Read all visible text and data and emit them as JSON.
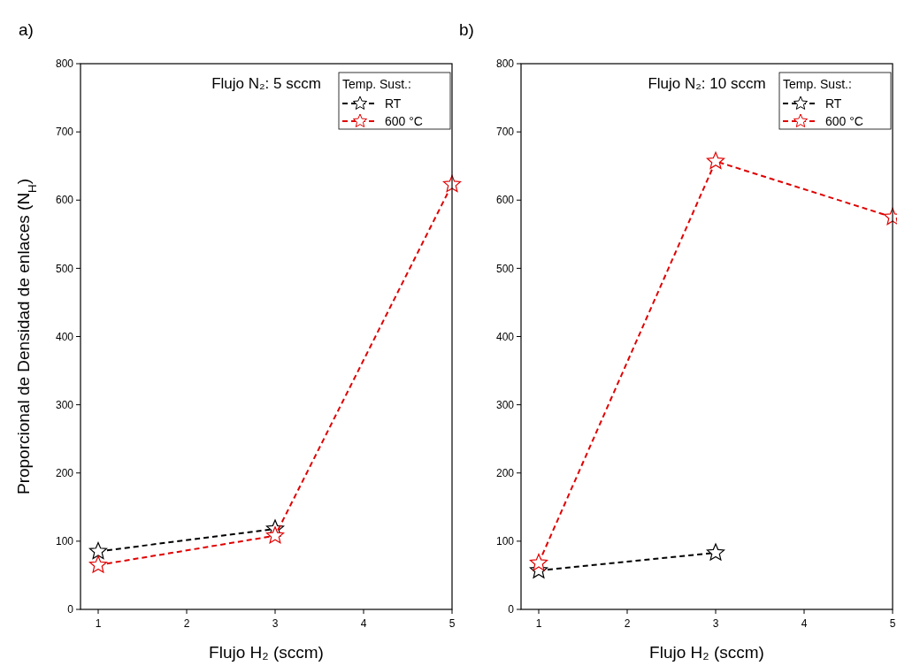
{
  "chart_data": [
    {
      "type": "line",
      "title": "Flujo N₂: 5 sccm",
      "xlabel": "Flujo H₂ (sccm)",
      "ylabel": "Proporcional de Densidad de enlaces (N$_{H}$)",
      "legend_title": "Temp. Sust.:",
      "annotations": [
        "a)"
      ],
      "x": [
        1,
        3,
        5
      ],
      "xlim": [
        0.8,
        5
      ],
      "xticks": [
        1,
        2,
        3,
        4,
        5
      ],
      "ylim": [
        0,
        800
      ],
      "yticks": [
        0,
        100,
        200,
        300,
        400,
        500,
        600,
        700,
        800
      ],
      "legend": "top right",
      "marker": "star",
      "line_style": "dashed",
      "series": [
        {
          "name": "RT",
          "color": "#000000",
          "values": [
            85,
            118,
            null
          ]
        },
        {
          "name": "600 °C",
          "color": "#e00000",
          "values": [
            65,
            108,
            623
          ]
        }
      ]
    },
    {
      "type": "line",
      "title": "Flujo N₂: 10 sccm",
      "xlabel": "Flujo H₂ (sccm)",
      "legend_title": "Temp. Sust.:",
      "annotations": [
        "b)"
      ],
      "x": [
        1,
        3,
        5
      ],
      "xlim": [
        0.8,
        5
      ],
      "xticks": [
        1,
        2,
        3,
        4,
        5
      ],
      "ylim": [
        0,
        800
      ],
      "yticks": [
        0,
        100,
        200,
        300,
        400,
        500,
        600,
        700,
        800
      ],
      "legend": "top right",
      "marker": "star",
      "line_style": "dashed",
      "series": [
        {
          "name": "RT",
          "color": "#000000",
          "values": [
            57,
            83,
            null
          ]
        },
        {
          "name": "600 °C",
          "color": "#e00000",
          "values": [
            68,
            657,
            575
          ]
        }
      ]
    }
  ]
}
